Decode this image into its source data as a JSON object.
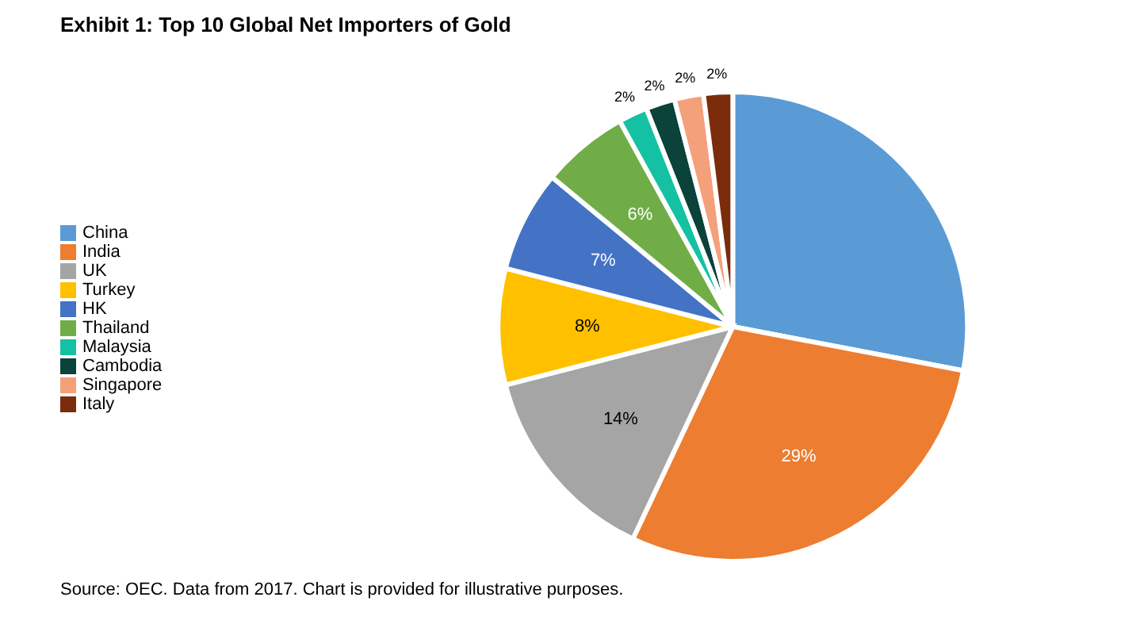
{
  "chart_data": {
    "type": "pie",
    "title": "Exhibit 1: Top 10 Global Net Importers of Gold",
    "categories": [
      "China",
      "India",
      "UK",
      "Turkey",
      "HK",
      "Thailand",
      "Malaysia",
      "Cambodia",
      "Singapore",
      "Italy"
    ],
    "values": [
      28,
      29,
      14,
      8,
      7,
      6,
      2,
      2,
      2,
      2
    ],
    "value_labels": [
      null,
      "29%",
      "14%",
      "8%",
      "7%",
      "6%",
      "2%",
      "2%",
      "2%",
      "2%"
    ],
    "colors": [
      "#5b9bd5",
      "#ed7d31",
      "#a5a5a5",
      "#ffc000",
      "#4472c4",
      "#70ad47",
      "#14c2a3",
      "#0b4239",
      "#f4a07a",
      "#7b2c0b"
    ],
    "legend": "left",
    "annotations": [
      "Source: OEC. Data from 2017. Chart is provided for illustrative purposes."
    ]
  }
}
